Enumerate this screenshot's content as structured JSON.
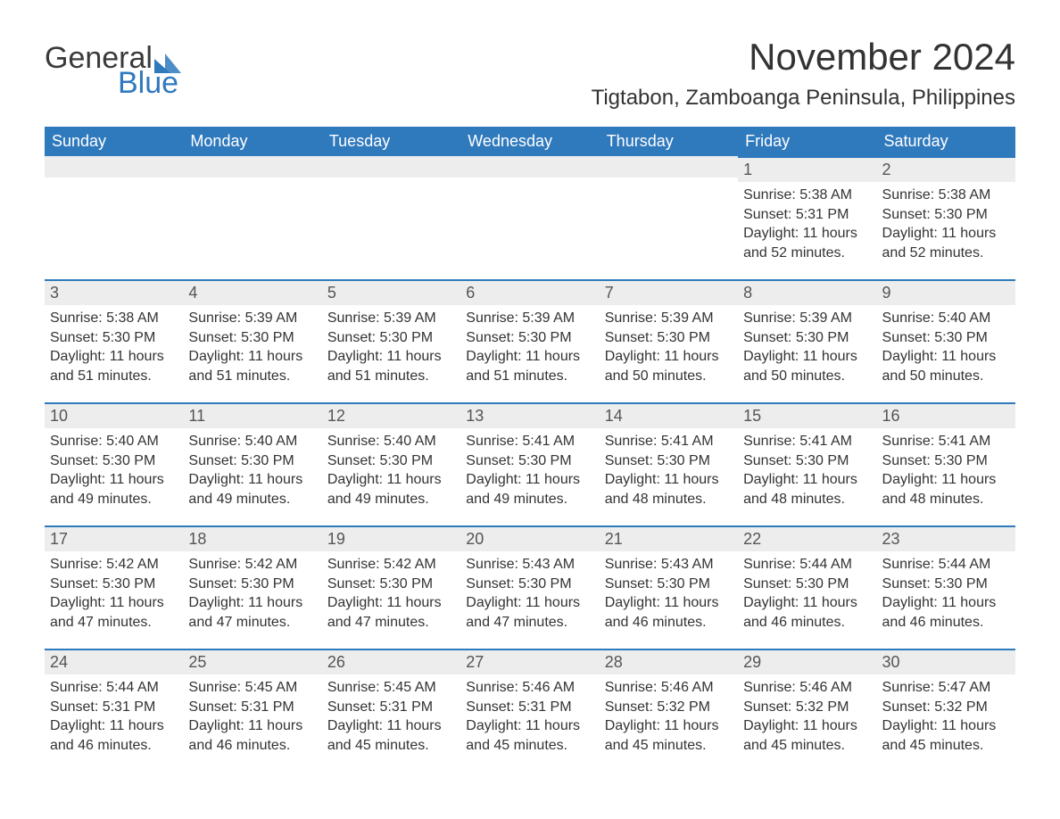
{
  "logo": {
    "general": "General",
    "blue": "Blue"
  },
  "title": "November 2024",
  "subtitle": "Tigtabon, Zamboanga Peninsula, Philippines",
  "colors": {
    "header_bg": "#2f79bd",
    "header_text": "#ffffff",
    "daynum_bg": "#ededed",
    "daynum_border": "#2f79bd",
    "body_text": "#333333",
    "logo_dark": "#3a3a3a",
    "logo_blue": "#2f79bd",
    "page_bg": "#ffffff"
  },
  "typography": {
    "title_fontsize": 42,
    "subtitle_fontsize": 24,
    "dayheader_fontsize": 18,
    "daynum_fontsize": 18,
    "body_fontsize": 16,
    "font_family": "Arial"
  },
  "calendar": {
    "type": "table",
    "day_headers": [
      "Sunday",
      "Monday",
      "Tuesday",
      "Wednesday",
      "Thursday",
      "Friday",
      "Saturday"
    ],
    "weeks": [
      [
        null,
        null,
        null,
        null,
        null,
        {
          "n": "1",
          "sunrise": "Sunrise: 5:38 AM",
          "sunset": "Sunset: 5:31 PM",
          "daylight1": "Daylight: 11 hours",
          "daylight2": "and 52 minutes."
        },
        {
          "n": "2",
          "sunrise": "Sunrise: 5:38 AM",
          "sunset": "Sunset: 5:30 PM",
          "daylight1": "Daylight: 11 hours",
          "daylight2": "and 52 minutes."
        }
      ],
      [
        {
          "n": "3",
          "sunrise": "Sunrise: 5:38 AM",
          "sunset": "Sunset: 5:30 PM",
          "daylight1": "Daylight: 11 hours",
          "daylight2": "and 51 minutes."
        },
        {
          "n": "4",
          "sunrise": "Sunrise: 5:39 AM",
          "sunset": "Sunset: 5:30 PM",
          "daylight1": "Daylight: 11 hours",
          "daylight2": "and 51 minutes."
        },
        {
          "n": "5",
          "sunrise": "Sunrise: 5:39 AM",
          "sunset": "Sunset: 5:30 PM",
          "daylight1": "Daylight: 11 hours",
          "daylight2": "and 51 minutes."
        },
        {
          "n": "6",
          "sunrise": "Sunrise: 5:39 AM",
          "sunset": "Sunset: 5:30 PM",
          "daylight1": "Daylight: 11 hours",
          "daylight2": "and 51 minutes."
        },
        {
          "n": "7",
          "sunrise": "Sunrise: 5:39 AM",
          "sunset": "Sunset: 5:30 PM",
          "daylight1": "Daylight: 11 hours",
          "daylight2": "and 50 minutes."
        },
        {
          "n": "8",
          "sunrise": "Sunrise: 5:39 AM",
          "sunset": "Sunset: 5:30 PM",
          "daylight1": "Daylight: 11 hours",
          "daylight2": "and 50 minutes."
        },
        {
          "n": "9",
          "sunrise": "Sunrise: 5:40 AM",
          "sunset": "Sunset: 5:30 PM",
          "daylight1": "Daylight: 11 hours",
          "daylight2": "and 50 minutes."
        }
      ],
      [
        {
          "n": "10",
          "sunrise": "Sunrise: 5:40 AM",
          "sunset": "Sunset: 5:30 PM",
          "daylight1": "Daylight: 11 hours",
          "daylight2": "and 49 minutes."
        },
        {
          "n": "11",
          "sunrise": "Sunrise: 5:40 AM",
          "sunset": "Sunset: 5:30 PM",
          "daylight1": "Daylight: 11 hours",
          "daylight2": "and 49 minutes."
        },
        {
          "n": "12",
          "sunrise": "Sunrise: 5:40 AM",
          "sunset": "Sunset: 5:30 PM",
          "daylight1": "Daylight: 11 hours",
          "daylight2": "and 49 minutes."
        },
        {
          "n": "13",
          "sunrise": "Sunrise: 5:41 AM",
          "sunset": "Sunset: 5:30 PM",
          "daylight1": "Daylight: 11 hours",
          "daylight2": "and 49 minutes."
        },
        {
          "n": "14",
          "sunrise": "Sunrise: 5:41 AM",
          "sunset": "Sunset: 5:30 PM",
          "daylight1": "Daylight: 11 hours",
          "daylight2": "and 48 minutes."
        },
        {
          "n": "15",
          "sunrise": "Sunrise: 5:41 AM",
          "sunset": "Sunset: 5:30 PM",
          "daylight1": "Daylight: 11 hours",
          "daylight2": "and 48 minutes."
        },
        {
          "n": "16",
          "sunrise": "Sunrise: 5:41 AM",
          "sunset": "Sunset: 5:30 PM",
          "daylight1": "Daylight: 11 hours",
          "daylight2": "and 48 minutes."
        }
      ],
      [
        {
          "n": "17",
          "sunrise": "Sunrise: 5:42 AM",
          "sunset": "Sunset: 5:30 PM",
          "daylight1": "Daylight: 11 hours",
          "daylight2": "and 47 minutes."
        },
        {
          "n": "18",
          "sunrise": "Sunrise: 5:42 AM",
          "sunset": "Sunset: 5:30 PM",
          "daylight1": "Daylight: 11 hours",
          "daylight2": "and 47 minutes."
        },
        {
          "n": "19",
          "sunrise": "Sunrise: 5:42 AM",
          "sunset": "Sunset: 5:30 PM",
          "daylight1": "Daylight: 11 hours",
          "daylight2": "and 47 minutes."
        },
        {
          "n": "20",
          "sunrise": "Sunrise: 5:43 AM",
          "sunset": "Sunset: 5:30 PM",
          "daylight1": "Daylight: 11 hours",
          "daylight2": "and 47 minutes."
        },
        {
          "n": "21",
          "sunrise": "Sunrise: 5:43 AM",
          "sunset": "Sunset: 5:30 PM",
          "daylight1": "Daylight: 11 hours",
          "daylight2": "and 46 minutes."
        },
        {
          "n": "22",
          "sunrise": "Sunrise: 5:44 AM",
          "sunset": "Sunset: 5:30 PM",
          "daylight1": "Daylight: 11 hours",
          "daylight2": "and 46 minutes."
        },
        {
          "n": "23",
          "sunrise": "Sunrise: 5:44 AM",
          "sunset": "Sunset: 5:30 PM",
          "daylight1": "Daylight: 11 hours",
          "daylight2": "and 46 minutes."
        }
      ],
      [
        {
          "n": "24",
          "sunrise": "Sunrise: 5:44 AM",
          "sunset": "Sunset: 5:31 PM",
          "daylight1": "Daylight: 11 hours",
          "daylight2": "and 46 minutes."
        },
        {
          "n": "25",
          "sunrise": "Sunrise: 5:45 AM",
          "sunset": "Sunset: 5:31 PM",
          "daylight1": "Daylight: 11 hours",
          "daylight2": "and 46 minutes."
        },
        {
          "n": "26",
          "sunrise": "Sunrise: 5:45 AM",
          "sunset": "Sunset: 5:31 PM",
          "daylight1": "Daylight: 11 hours",
          "daylight2": "and 45 minutes."
        },
        {
          "n": "27",
          "sunrise": "Sunrise: 5:46 AM",
          "sunset": "Sunset: 5:31 PM",
          "daylight1": "Daylight: 11 hours",
          "daylight2": "and 45 minutes."
        },
        {
          "n": "28",
          "sunrise": "Sunrise: 5:46 AM",
          "sunset": "Sunset: 5:32 PM",
          "daylight1": "Daylight: 11 hours",
          "daylight2": "and 45 minutes."
        },
        {
          "n": "29",
          "sunrise": "Sunrise: 5:46 AM",
          "sunset": "Sunset: 5:32 PM",
          "daylight1": "Daylight: 11 hours",
          "daylight2": "and 45 minutes."
        },
        {
          "n": "30",
          "sunrise": "Sunrise: 5:47 AM",
          "sunset": "Sunset: 5:32 PM",
          "daylight1": "Daylight: 11 hours",
          "daylight2": "and 45 minutes."
        }
      ]
    ]
  }
}
